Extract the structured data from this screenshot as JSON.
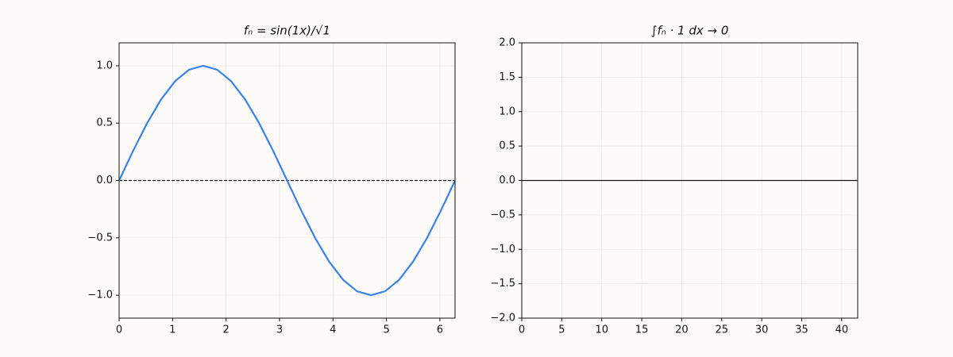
{
  "chart_data": [
    {
      "type": "line",
      "title": "fₙ = sin(1x)/√1",
      "x": [
        0,
        0.262,
        0.524,
        0.785,
        1.047,
        1.309,
        1.571,
        1.833,
        2.094,
        2.356,
        2.618,
        2.88,
        3.142,
        3.403,
        3.665,
        3.927,
        4.189,
        4.451,
        4.712,
        4.974,
        5.236,
        5.498,
        5.76,
        6.021,
        6.283
      ],
      "series": [
        {
          "color": "#3b82e6",
          "values": [
            0,
            0.259,
            0.5,
            0.707,
            0.866,
            0.966,
            1,
            0.966,
            0.866,
            0.707,
            0.5,
            0.259,
            0,
            -0.259,
            -0.5,
            -0.707,
            -0.866,
            -0.966,
            -1,
            -0.966,
            -0.866,
            -0.707,
            -0.5,
            -0.259,
            0
          ]
        }
      ],
      "hline": {
        "value": 0,
        "color": "#111111",
        "style": "dashed"
      },
      "xlim": [
        0,
        6.283
      ],
      "ylim": [
        -1.2,
        1.2
      ],
      "xticks": [
        0,
        1,
        2,
        3,
        4,
        5,
        6
      ],
      "yticks": [
        {
          "value": -1,
          "label": "−1.0"
        },
        {
          "value": -0.5,
          "label": "−0.5"
        },
        {
          "value": 0,
          "label": "0.0"
        },
        {
          "value": 0.5,
          "label": "0.5"
        },
        {
          "value": 1,
          "label": "1.0"
        }
      ],
      "grid": true
    },
    {
      "type": "line",
      "title": "∫fₙ · 1 dx → 0",
      "series": [],
      "hline": {
        "value": 0,
        "color": "#111111",
        "style": "solid"
      },
      "xlim": [
        0,
        42
      ],
      "ylim": [
        -2,
        2
      ],
      "xticks": [
        0,
        5,
        10,
        15,
        20,
        25,
        30,
        35,
        40
      ],
      "yticks": [
        {
          "value": -2,
          "label": "−2.0"
        },
        {
          "value": -1.5,
          "label": "−1.5"
        },
        {
          "value": -1,
          "label": "−1.0"
        },
        {
          "value": -0.5,
          "label": "−0.5"
        },
        {
          "value": 0,
          "label": "0.0"
        },
        {
          "value": 0.5,
          "label": "0.5"
        },
        {
          "value": 1,
          "label": "1.0"
        },
        {
          "value": 1.5,
          "label": "1.5"
        },
        {
          "value": 2,
          "label": "2.0"
        }
      ],
      "grid": true
    }
  ]
}
